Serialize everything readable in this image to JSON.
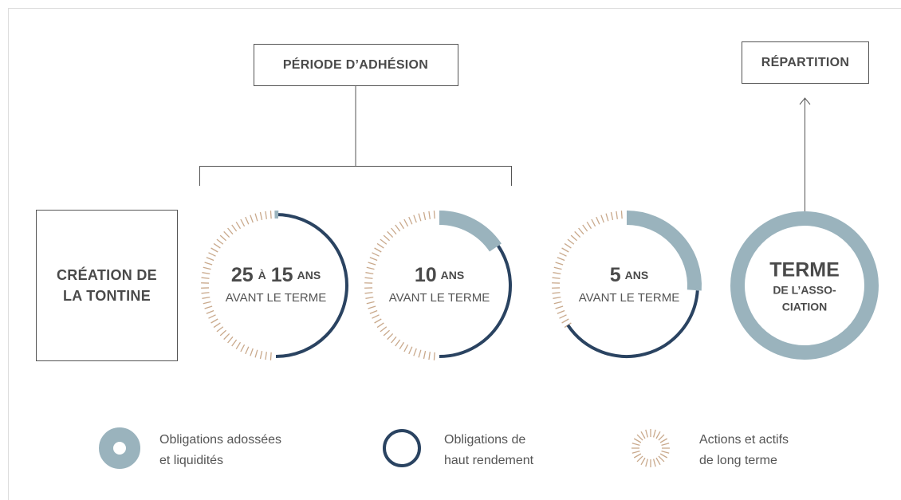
{
  "header": {
    "period": "PÉRIODE D’ADHÉSION",
    "distribution": "RÉPARTITION"
  },
  "start": {
    "lines": [
      "CRÉATION DE",
      "LA TONTINE"
    ]
  },
  "stages": [
    {
      "number": "25",
      "joiner": "À",
      "number2": "15",
      "unit": "ANS",
      "caption": "AVANT LE TERME"
    },
    {
      "number": "10",
      "unit": "ANS",
      "caption": "AVANT LE TERME"
    },
    {
      "number": "5",
      "unit": "ANS",
      "caption": "AVANT LE TERME"
    }
  ],
  "end": {
    "title": "TERME",
    "lines": [
      "DE L’ASSO-",
      "CIATION"
    ]
  },
  "legend": [
    {
      "lines": [
        "Obligations adossées",
        "et liquidités"
      ]
    },
    {
      "lines": [
        "Obligations de",
        "haut rendement"
      ]
    },
    {
      "lines": [
        "Actions et actifs",
        "de long terme"
      ]
    }
  ]
}
